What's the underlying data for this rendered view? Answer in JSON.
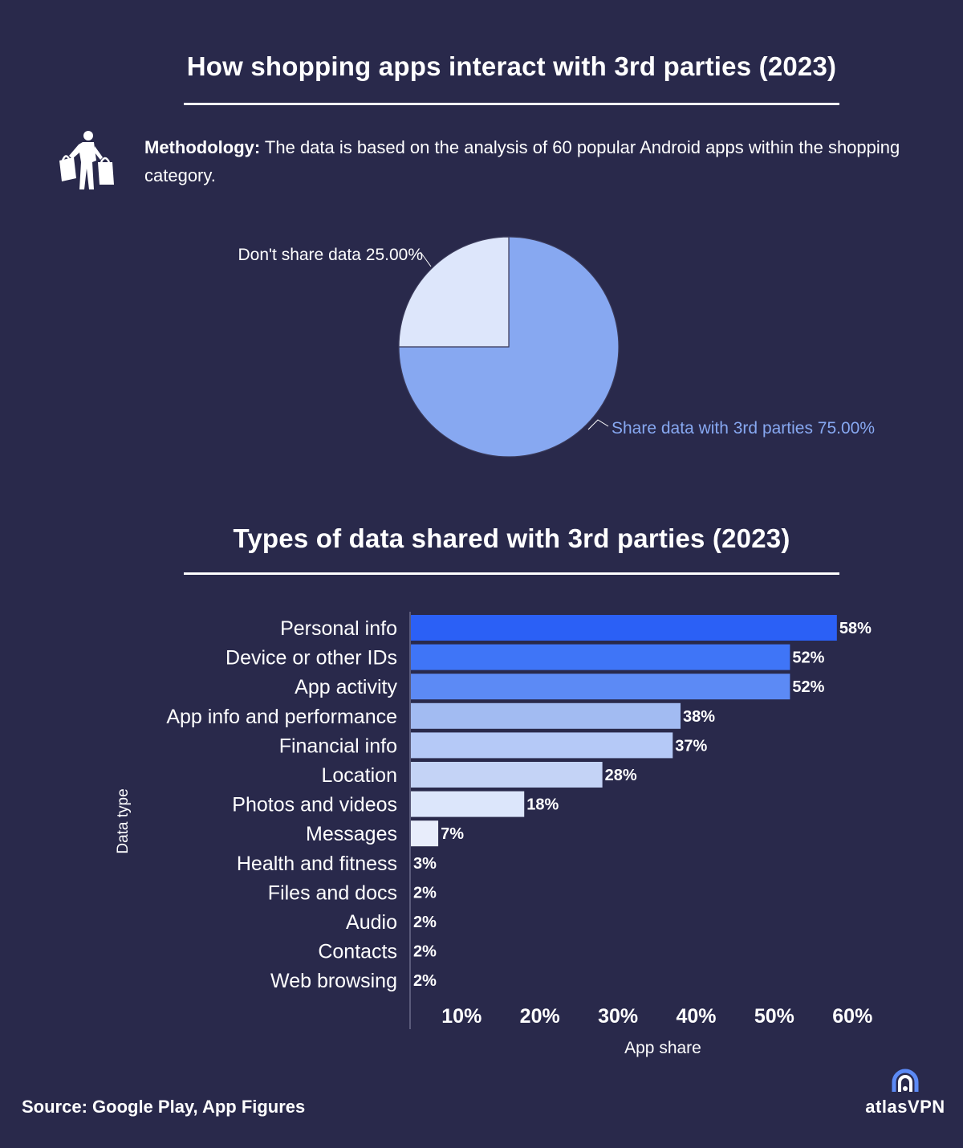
{
  "colors": {
    "background": "#29294b",
    "text": "#ffffff",
    "pie_share": "#87a8f1",
    "pie_noshare": "#dde6fb"
  },
  "titles": {
    "pie": "How shopping apps interact with 3rd parties (2023)",
    "bar": "Types of data shared with 3rd parties (2023)"
  },
  "methodology": {
    "label": "Methodology:",
    "text": " The data is based on the analysis of 60 popular Android apps within the shopping category."
  },
  "icons": {
    "methodology": "shopper-with-bags-icon",
    "logo": "atlasvpn-logo-icon"
  },
  "chart_data": [
    {
      "type": "pie",
      "title": "How shopping apps interact with 3rd parties (2023)",
      "slices": [
        {
          "label": "Share data with 3rd parties",
          "value": 75.0,
          "display": "Share data with 3rd parties 75.00%",
          "color": "#87a8f1"
        },
        {
          "label": "Don't share data",
          "value": 25.0,
          "display": "Don't share data 25.00%",
          "color": "#dde6fb"
        }
      ]
    },
    {
      "type": "bar",
      "orientation": "horizontal",
      "title": "Types of data shared with 3rd parties (2023)",
      "xlabel": "App share",
      "ylabel": "Data type",
      "xlim": [
        3.5,
        63
      ],
      "xticks": [
        10,
        20,
        30,
        40,
        50,
        60
      ],
      "xtick_labels": [
        "10%",
        "20%",
        "30%",
        "40%",
        "50%",
        "60%"
      ],
      "categories": [
        "Personal info",
        "Device or other IDs",
        "App activity",
        "App info and performance",
        "Financial info",
        "Location",
        "Photos and videos",
        "Messages",
        "Health and fitness",
        "Files and docs",
        "Audio",
        "Contacts",
        "Web browsing"
      ],
      "values": [
        58,
        52,
        52,
        38,
        37,
        28,
        18,
        7,
        3,
        2,
        2,
        2,
        2
      ],
      "value_labels": [
        "58%",
        "52%",
        "52%",
        "38%",
        "37%",
        "28%",
        "18%",
        "7%",
        "3%",
        "2%",
        "2%",
        "2%",
        "2%"
      ],
      "colors": [
        "#2b60f6",
        "#3f75f7",
        "#5c8af5",
        "#a2bbf2",
        "#b5c9f7",
        "#c4d3f6",
        "#dce6fb",
        "#e8edfb",
        "#ffffff",
        "#2b60f6",
        "#3f75f7",
        "#5c8af5",
        "#a2bbf2"
      ],
      "grid": false,
      "legend": "none"
    }
  ],
  "footer": {
    "source": "Source: Google Play, App Figures",
    "brand": "atlasVPN"
  }
}
